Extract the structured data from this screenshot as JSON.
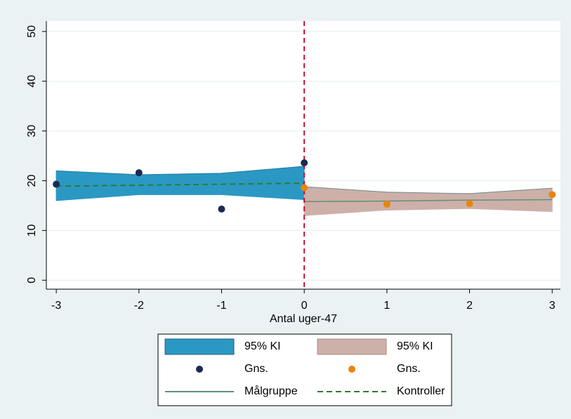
{
  "chart_data": {
    "type": "line",
    "x_label": "Antal uger-47",
    "xlim": [
      -3.12,
      3.1
    ],
    "ylim": [
      -1.8,
      52.1
    ],
    "xticks": [
      -3,
      -2,
      -1,
      0,
      1,
      2,
      3
    ],
    "yticks": [
      0,
      10,
      20,
      30,
      40,
      50
    ],
    "grid": true,
    "vline": {
      "x": 0,
      "color": "#c8102e"
    },
    "legend": "bottom",
    "series": [
      {
        "name": "95% KI",
        "kind": "area",
        "color": "#2b98c4",
        "x": [
          -3,
          -2,
          -1,
          0
        ],
        "upper": [
          22.0,
          21.2,
          21.5,
          22.9
        ],
        "lower": [
          16.0,
          17.2,
          17.2,
          16.2
        ]
      },
      {
        "name": "95% KI",
        "kind": "area",
        "color": "#cdb0a8",
        "x": [
          0,
          1,
          2,
          3
        ],
        "upper": [
          18.8,
          17.7,
          17.4,
          18.5
        ],
        "lower": [
          13.0,
          14.1,
          14.4,
          13.8
        ]
      },
      {
        "name": "Gns.",
        "kind": "scatter",
        "color": "#1a2a52",
        "x": [
          -3,
          -2,
          -1,
          0
        ],
        "values": [
          19.3,
          21.6,
          14.3,
          23.6
        ]
      },
      {
        "name": "Gns.",
        "kind": "scatter",
        "color": "#e8850b",
        "x": [
          0,
          1,
          2,
          3
        ],
        "values": [
          18.6,
          15.3,
          15.4,
          17.2
        ]
      },
      {
        "name": "Målgruppe",
        "kind": "line",
        "color": "#5f8f80",
        "x": [
          0,
          1,
          2,
          3
        ],
        "values": [
          15.8,
          15.9,
          16.1,
          16.2
        ]
      },
      {
        "name": "Kontroller",
        "kind": "dashed",
        "color": "#2d7d2d",
        "x": [
          -3,
          -2,
          -1,
          0
        ],
        "values": [
          18.9,
          19.1,
          19.3,
          19.5
        ]
      }
    ]
  }
}
